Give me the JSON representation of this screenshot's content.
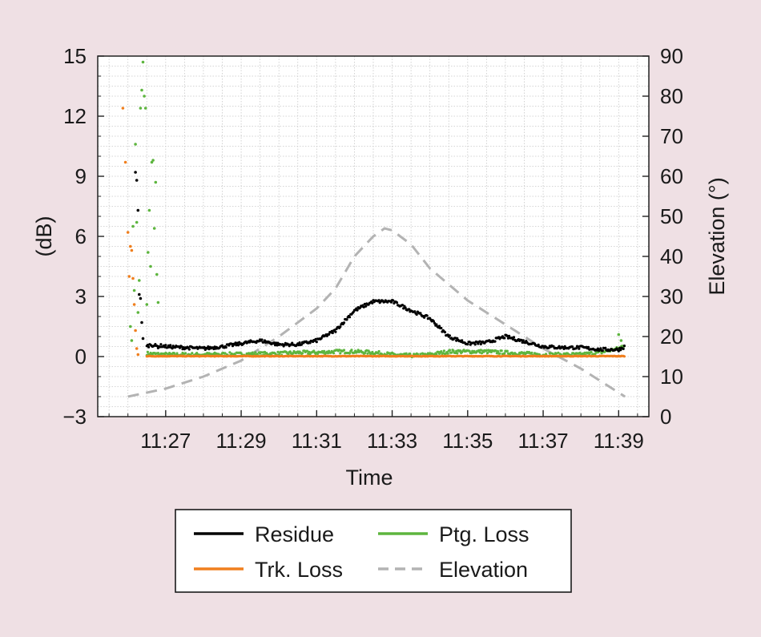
{
  "chart_data": {
    "type": "line",
    "title": "",
    "xlabel": "Time",
    "ylabel": "(dB)",
    "y2label": "Elevation (°)",
    "x_ticks": [
      "11:27",
      "11:29",
      "11:31",
      "11:33",
      "11:35",
      "11:37",
      "11:39"
    ],
    "x_range": [
      "11:25:12",
      "11:39:48"
    ],
    "ylim": [
      -3,
      15
    ],
    "y_ticks": [
      -3,
      0,
      3,
      6,
      9,
      12,
      15
    ],
    "y_tick_labels": [
      "−3",
      "0",
      "3",
      "6",
      "9",
      "12",
      "15"
    ],
    "y2lim": [
      0,
      90
    ],
    "y2_ticks": [
      0,
      10,
      20,
      30,
      40,
      50,
      60,
      70,
      80,
      90
    ],
    "y2_tick_labels": [
      "0",
      "10",
      "20",
      "30",
      "40",
      "50",
      "60",
      "70",
      "80",
      "90"
    ],
    "grid": true,
    "legend_position": "bottom-center",
    "series": [
      {
        "name": "Residue",
        "style": "dots",
        "axis": "left",
        "color": "#000000",
        "x": [
          "11:26:30",
          "11:26:36",
          "11:26:42",
          "11:26:48",
          "11:26:54",
          "11:27:00",
          "11:27:30",
          "11:28:00",
          "11:28:30",
          "11:29:00",
          "11:29:30",
          "11:30:00",
          "11:30:30",
          "11:31:00",
          "11:31:30",
          "11:32:00",
          "11:32:30",
          "11:33:00",
          "11:33:30",
          "11:34:00",
          "11:34:30",
          "11:35:00",
          "11:35:30",
          "11:36:00",
          "11:36:30",
          "11:37:00",
          "11:37:30",
          "11:38:00",
          "11:38:30",
          "11:39:00",
          "11:39:10"
        ],
        "y": [
          0.5,
          0.6,
          0.55,
          0.5,
          0.55,
          0.5,
          0.45,
          0.4,
          0.5,
          0.65,
          0.8,
          0.6,
          0.6,
          0.8,
          1.3,
          2.3,
          2.75,
          2.75,
          2.3,
          1.9,
          1.0,
          0.65,
          0.7,
          1.0,
          0.75,
          0.5,
          0.45,
          0.45,
          0.35,
          0.35,
          0.5
        ],
        "x_outliers": [
          "11:26:12",
          "11:26:14",
          "11:26:16",
          "11:26:18",
          "11:26:20",
          "11:26:22",
          "11:26:24"
        ],
        "y_outliers": [
          9.2,
          8.8,
          7.3,
          3.1,
          2.9,
          1.7,
          0.9
        ]
      },
      {
        "name": "Ptg. Loss",
        "style": "dots",
        "axis": "left",
        "color": "#5db53e",
        "x": [
          "11:26:30",
          "11:27:00",
          "11:28:00",
          "11:29:00",
          "11:30:00",
          "11:30:30",
          "11:31:00",
          "11:31:30",
          "11:32:00",
          "11:32:30",
          "11:33:00",
          "11:33:30",
          "11:34:00",
          "11:34:30",
          "11:35:00",
          "11:35:30",
          "11:36:00",
          "11:37:00",
          "11:38:00",
          "11:38:30",
          "11:39:00",
          "11:39:10"
        ],
        "y": [
          0.15,
          0.1,
          0.1,
          0.12,
          0.15,
          0.2,
          0.2,
          0.25,
          0.25,
          0.2,
          0.1,
          0.05,
          0.1,
          0.25,
          0.25,
          0.25,
          0.2,
          0.1,
          0.1,
          0.2,
          0.4,
          0.6
        ],
        "x_outliers": [
          "11:26:04",
          "11:26:06",
          "11:26:08",
          "11:26:10",
          "11:26:12",
          "11:26:14",
          "11:26:16",
          "11:26:18",
          "11:26:20",
          "11:26:22",
          "11:26:24",
          "11:26:26",
          "11:26:28",
          "11:26:30",
          "11:26:32",
          "11:26:34",
          "11:26:36",
          "11:26:38",
          "11:26:40",
          "11:26:42",
          "11:26:44",
          "11:26:46",
          "11:26:48",
          "11:39:00",
          "11:39:04"
        ],
        "y_outliers": [
          1.5,
          0.8,
          6.5,
          3.3,
          10.6,
          6.7,
          2.2,
          3.8,
          12.4,
          13.3,
          14.7,
          13.0,
          12.4,
          2.6,
          5.2,
          7.3,
          4.5,
          9.7,
          9.8,
          6.4,
          8.7,
          4.1,
          2.7,
          1.1,
          0.8
        ]
      },
      {
        "name": "Trk. Loss",
        "style": "dots",
        "axis": "left",
        "color": "#f07f1e",
        "x": [
          "11:26:30",
          "11:27:00",
          "11:28:00",
          "11:29:00",
          "11:30:00",
          "11:31:00",
          "11:32:00",
          "11:33:00",
          "11:34:00",
          "11:35:00",
          "11:36:00",
          "11:37:00",
          "11:38:00",
          "11:39:00",
          "11:39:10"
        ],
        "y": [
          0.02,
          0.02,
          0.02,
          0.02,
          0.02,
          0.02,
          0.02,
          0.02,
          0.02,
          0.02,
          0.02,
          0.02,
          0.02,
          0.02,
          0.02
        ],
        "x_outliers": [
          "11:25:52",
          "11:25:56",
          "11:26:00",
          "11:26:02",
          "11:26:04",
          "11:26:06",
          "11:26:08",
          "11:26:10",
          "11:26:12",
          "11:26:14",
          "11:26:16"
        ],
        "y_outliers": [
          12.4,
          9.7,
          6.2,
          4.0,
          5.5,
          5.3,
          3.9,
          2.6,
          1.3,
          0.4,
          0.1
        ]
      },
      {
        "name": "Elevation",
        "style": "dashed",
        "axis": "right",
        "color": "#b3b3b3",
        "x": [
          "11:26:00",
          "11:27:00",
          "11:28:00",
          "11:29:00",
          "11:30:00",
          "11:31:00",
          "11:31:30",
          "11:32:00",
          "11:32:30",
          "11:32:48",
          "11:33:00",
          "11:33:30",
          "11:34:00",
          "11:35:00",
          "11:36:00",
          "11:37:00",
          "11:38:00",
          "11:39:00",
          "11:39:10"
        ],
        "y": [
          5,
          7,
          10,
          14,
          20,
          27,
          32,
          40,
          45,
          47,
          46.5,
          43,
          37,
          29,
          23,
          17,
          12,
          6,
          5
        ]
      }
    ],
    "legend": [
      {
        "label": "Residue",
        "style": "solid",
        "color": "#000000"
      },
      {
        "label": "Ptg. Loss",
        "style": "solid",
        "color": "#5db53e"
      },
      {
        "label": "Trk. Loss",
        "style": "solid",
        "color": "#f07f1e"
      },
      {
        "label": "Elevation",
        "style": "dashed",
        "color": "#b3b3b3"
      }
    ]
  },
  "colors": {
    "background": "#efe0e4",
    "plot_background": "#ffffff",
    "grid": "#c8c8c8"
  }
}
